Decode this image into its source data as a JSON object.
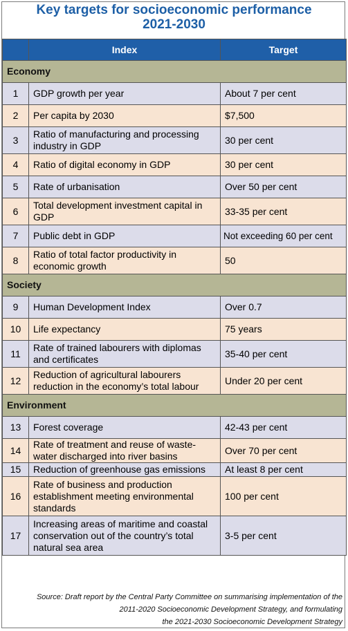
{
  "title": [
    "Key targets for socioeconomic performance",
    "2021-2030"
  ],
  "headers": {
    "num": "",
    "index": "Index",
    "target": "Target"
  },
  "sections": [
    {
      "name": "Economy",
      "rows": [
        {
          "num": "1",
          "index": "GDP growth per year",
          "target": "About 7 per cent"
        },
        {
          "num": "2",
          "index": "Per capita by 2030",
          "target": "$7,500"
        },
        {
          "num": "3",
          "index": "Ratio of manufacturing and processing industry in GDP",
          "target": "30 per cent"
        },
        {
          "num": "4",
          "index": "Ratio of digital economy in GDP",
          "target": "30 per cent"
        },
        {
          "num": "5",
          "index": "Rate of urbanisation",
          "target": "Over 50 per cent"
        },
        {
          "num": "6",
          "index": "Total development investment capital in GDP",
          "target": "33-35 per cent"
        },
        {
          "num": "7",
          "index": "Public debt in GDP",
          "target": "Not exceeding 60 per cent"
        },
        {
          "num": "8",
          "index": "Ratio of total factor productivity in economic growth",
          "target": "50"
        }
      ]
    },
    {
      "name": "Society",
      "rows": [
        {
          "num": "9",
          "index": "Human Development Index",
          "target": "Over 0.7"
        },
        {
          "num": "10",
          "index": "Life expectancy",
          "target": "75 years"
        },
        {
          "num": "11",
          "index": "Rate of trained labourers with diplomas and certificates",
          "target": "35-40 per cent"
        },
        {
          "num": "12",
          "index": "Reduction of agricultural labourers reduction in the economy’s total labour",
          "target": "Under 20 per cent"
        }
      ]
    },
    {
      "name": "Environment",
      "rows": [
        {
          "num": "13",
          "index": "Forest coverage",
          "target": "42-43 per cent"
        },
        {
          "num": "14",
          "index": "Rate of treatment and reuse of waste-water discharged into river basins",
          "target": "Over 70 per cent"
        },
        {
          "num": "15",
          "index": "Reduction of greenhouse gas emissions",
          "target": "At least 8 per cent"
        },
        {
          "num": "16",
          "index": "Rate of business and production establishment meeting environmental standards",
          "target": "100 per cent"
        },
        {
          "num": "17",
          "index": "Increasing areas of maritime and coastal conservation out of the country’s total natural sea area",
          "target": "3-5 per cent"
        }
      ]
    }
  ],
  "source": [
    "Source: Draft report by the Central Party Committee on summarising implementation of the",
    "2011-2020 Socioeconomic Development Strategy, and formulating",
    "the 2021-2030 Socioeconomic Development Strategy"
  ]
}
